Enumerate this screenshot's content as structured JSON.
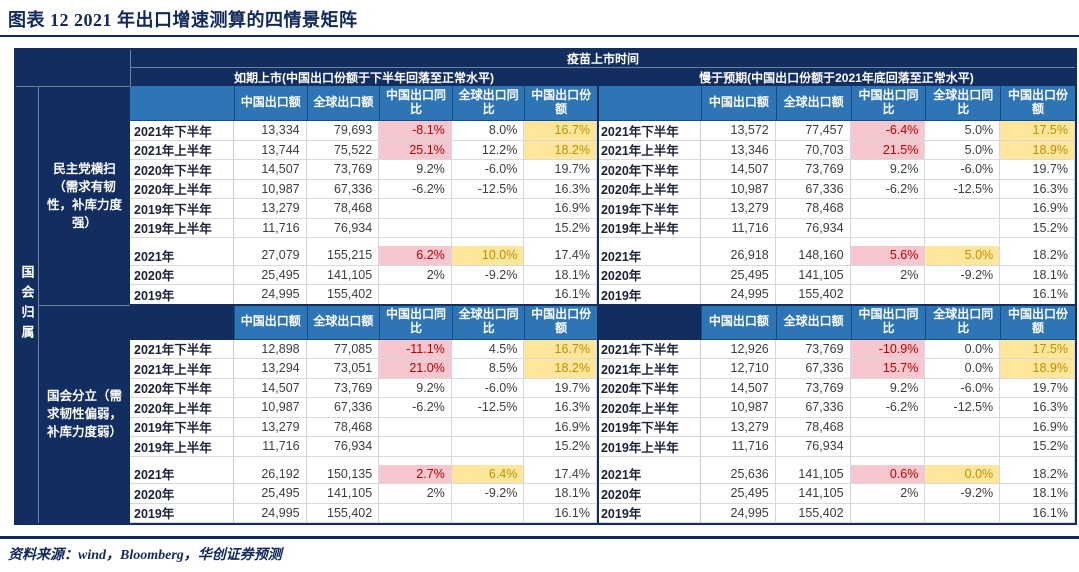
{
  "title": "图表 12  2021 年出口增速测算的四情景矩阵",
  "source": "资料来源：wind，Bloomberg，华创证券预测",
  "colors": {
    "navy": "#122d5f",
    "header_blue": "#2e75b6",
    "pink_bg": "#f6c7ce",
    "pink_text": "#c00000",
    "yellow_bg": "#ffe69b",
    "yellow_text": "#bf8f00"
  },
  "table": {
    "vaccine_header": "疫苗上市时间",
    "col_group_left": "如期上市(中国出口份额于下半年回落至正常水平)",
    "col_group_right": "慢于预期(中国出口份额于2021年底回落至正常水平)",
    "row_axis_title": "国会归属",
    "scenario_top": "民主党横扫（需求有韧性，补库力度强）",
    "scenario_bottom": "国会分立（需求韧性偏弱，补库力度弱）",
    "columns": [
      "中国出口额",
      "全球出口额",
      "中国出口同比",
      "全球出口同比",
      "中国出口份额"
    ],
    "quadrants": [
      {
        "id": "ontime-dem",
        "half": [
          {
            "label": "2021年下半年",
            "values": [
              "13,334",
              "79,693",
              "-8.1%",
              "8.0%",
              "16.7%"
            ],
            "hl": [
              "",
              "",
              "p",
              "",
              "y"
            ]
          },
          {
            "label": "2021年上半年",
            "values": [
              "13,744",
              "75,522",
              "25.1%",
              "12.2%",
              "18.2%"
            ],
            "hl": [
              "",
              "",
              "p",
              "",
              "y"
            ]
          },
          {
            "label": "2020年下半年",
            "values": [
              "14,507",
              "73,769",
              "9.2%",
              "-6.0%",
              "19.7%"
            ]
          },
          {
            "label": "2020年上半年",
            "values": [
              "10,987",
              "67,336",
              "-6.2%",
              "-12.5%",
              "16.3%"
            ]
          },
          {
            "label": "2019年下半年",
            "values": [
              "13,279",
              "78,468",
              "",
              "",
              "16.9%"
            ]
          },
          {
            "label": "2019年上半年",
            "values": [
              "11,716",
              "76,934",
              "",
              "",
              "15.2%"
            ]
          }
        ],
        "annual": [
          {
            "label": "2021年",
            "values": [
              "27,079",
              "155,215",
              "6.2%",
              "10.0%",
              "17.4%"
            ],
            "hl": [
              "",
              "",
              "p",
              "y",
              ""
            ]
          },
          {
            "label": "2020年",
            "values": [
              "25,495",
              "141,105",
              "2%",
              "-9.2%",
              "18.1%"
            ]
          },
          {
            "label": "2019年",
            "values": [
              "24,995",
              "155,402",
              "",
              "",
              "16.1%"
            ]
          }
        ]
      },
      {
        "id": "slow-dem",
        "half": [
          {
            "label": "2021年下半年",
            "values": [
              "13,572",
              "77,457",
              "-6.4%",
              "5.0%",
              "17.5%"
            ],
            "hl": [
              "",
              "",
              "p",
              "",
              "y"
            ]
          },
          {
            "label": "2021年上半年",
            "values": [
              "13,346",
              "70,703",
              "21.5%",
              "5.0%",
              "18.9%"
            ],
            "hl": [
              "",
              "",
              "p",
              "",
              "y"
            ]
          },
          {
            "label": "2020年下半年",
            "values": [
              "14,507",
              "73,769",
              "9.2%",
              "-6.0%",
              "19.7%"
            ]
          },
          {
            "label": "2020年上半年",
            "values": [
              "10,987",
              "67,336",
              "-6.2%",
              "-12.5%",
              "16.3%"
            ]
          },
          {
            "label": "2019年下半年",
            "values": [
              "13,279",
              "78,468",
              "",
              "",
              "16.9%"
            ]
          },
          {
            "label": "2019年上半年",
            "values": [
              "11,716",
              "76,934",
              "",
              "",
              "15.2%"
            ]
          }
        ],
        "annual": [
          {
            "label": "2021年",
            "values": [
              "26,918",
              "148,160",
              "5.6%",
              "5.0%",
              "18.2%"
            ],
            "hl": [
              "",
              "",
              "p",
              "y",
              ""
            ]
          },
          {
            "label": "2020年",
            "values": [
              "25,495",
              "141,105",
              "2%",
              "-9.2%",
              "18.1%"
            ]
          },
          {
            "label": "2019年",
            "values": [
              "24,995",
              "155,402",
              "",
              "",
              "16.1%"
            ]
          }
        ]
      },
      {
        "id": "ontime-split",
        "half": [
          {
            "label": "2021年下半年",
            "values": [
              "12,898",
              "77,085",
              "-11.1%",
              "4.5%",
              "16.7%"
            ],
            "hl": [
              "",
              "",
              "p",
              "",
              "y"
            ]
          },
          {
            "label": "2021年上半年",
            "values": [
              "13,294",
              "73,051",
              "21.0%",
              "8.5%",
              "18.2%"
            ],
            "hl": [
              "",
              "",
              "p",
              "",
              "y"
            ]
          },
          {
            "label": "2020年下半年",
            "values": [
              "14,507",
              "73,769",
              "9.2%",
              "-6.0%",
              "19.7%"
            ]
          },
          {
            "label": "2020年上半年",
            "values": [
              "10,987",
              "67,336",
              "-6.2%",
              "-12.5%",
              "16.3%"
            ]
          },
          {
            "label": "2019年下半年",
            "values": [
              "13,279",
              "78,468",
              "",
              "",
              "16.9%"
            ]
          },
          {
            "label": "2019年上半年",
            "values": [
              "11,716",
              "76,934",
              "",
              "",
              "15.2%"
            ]
          }
        ],
        "annual": [
          {
            "label": "2021年",
            "values": [
              "26,192",
              "150,135",
              "2.7%",
              "6.4%",
              "17.4%"
            ],
            "hl": [
              "",
              "",
              "p",
              "y",
              ""
            ]
          },
          {
            "label": "2020年",
            "values": [
              "25,495",
              "141,105",
              "2%",
              "-9.2%",
              "18.1%"
            ]
          },
          {
            "label": "2019年",
            "values": [
              "24,995",
              "155,402",
              "",
              "",
              "16.1%"
            ]
          }
        ]
      },
      {
        "id": "slow-split",
        "half": [
          {
            "label": "2021年下半年",
            "values": [
              "12,926",
              "73,769",
              "-10.9%",
              "0.0%",
              "17.5%"
            ],
            "hl": [
              "",
              "",
              "p",
              "",
              "y"
            ]
          },
          {
            "label": "2021年上半年",
            "values": [
              "12,710",
              "67,336",
              "15.7%",
              "0.0%",
              "18.9%"
            ],
            "hl": [
              "",
              "",
              "p",
              "",
              "y"
            ]
          },
          {
            "label": "2020年下半年",
            "values": [
              "14,507",
              "73,769",
              "9.2%",
              "-6.0%",
              "19.7%"
            ]
          },
          {
            "label": "2020年上半年",
            "values": [
              "10,987",
              "67,336",
              "-6.2%",
              "-12.5%",
              "16.3%"
            ]
          },
          {
            "label": "2019年下半年",
            "values": [
              "13,279",
              "78,468",
              "",
              "",
              "16.9%"
            ]
          },
          {
            "label": "2019年上半年",
            "values": [
              "11,716",
              "76,934",
              "",
              "",
              "15.2%"
            ]
          }
        ],
        "annual": [
          {
            "label": "2021年",
            "values": [
              "25,636",
              "141,105",
              "0.6%",
              "0.0%",
              "18.2%"
            ],
            "hl": [
              "",
              "",
              "p",
              "y",
              ""
            ]
          },
          {
            "label": "2020年",
            "values": [
              "25,495",
              "141,105",
              "2%",
              "-9.2%",
              "18.1%"
            ]
          },
          {
            "label": "2019年",
            "values": [
              "24,995",
              "155,402",
              "",
              "",
              "16.1%"
            ]
          }
        ]
      }
    ]
  }
}
